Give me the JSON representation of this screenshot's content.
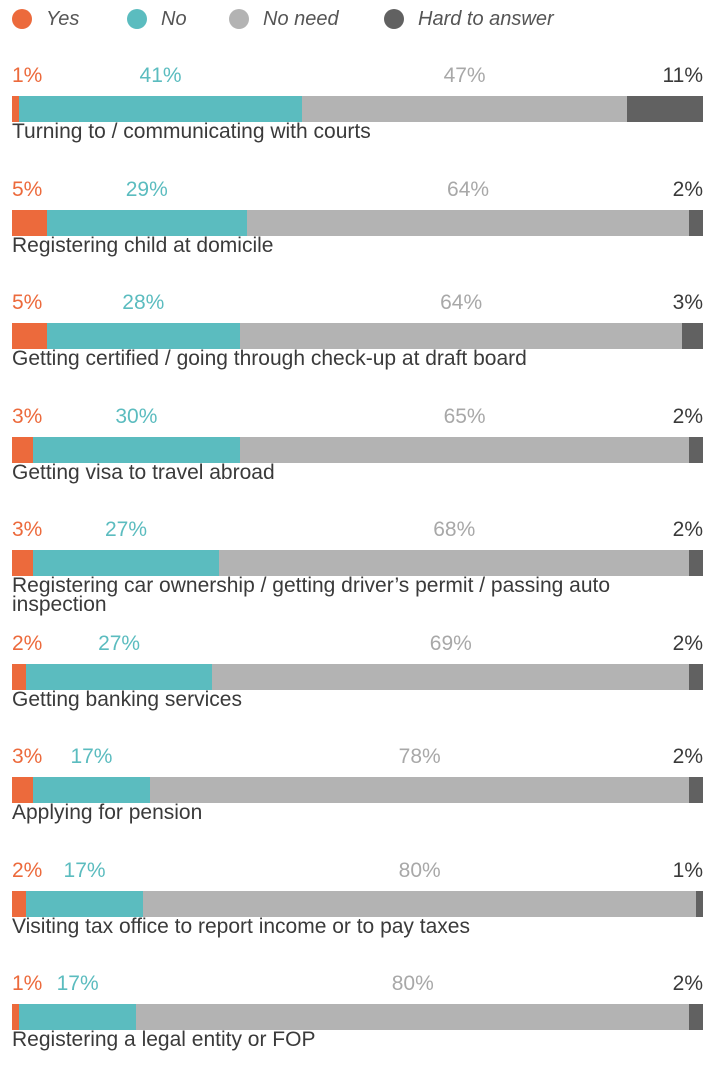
{
  "chart_data": {
    "type": "bar",
    "orientation": "horizontal",
    "stacked": true,
    "legend": "top",
    "series": [
      {
        "key": "yes",
        "name": "Yes",
        "color": "#ec6a3c"
      },
      {
        "key": "no",
        "name": "No",
        "color": "#5bbcbf"
      },
      {
        "key": "no_need",
        "name": "No need",
        "color": "#b3b3b3"
      },
      {
        "key": "hard",
        "name": "Hard to answer",
        "color": "#616161"
      }
    ],
    "rows": [
      {
        "label": "Turning to / communicating with courts",
        "values": [
          1,
          41,
          47,
          11
        ],
        "labels": [
          "1%",
          "41%",
          "47%",
          "11%"
        ]
      },
      {
        "label": "Registering child at domicile",
        "values": [
          5,
          29,
          64,
          2
        ],
        "labels": [
          "5%",
          "29%",
          "64%",
          "2%"
        ]
      },
      {
        "label": "Getting certified / going through check-up at draft board",
        "values": [
          5,
          28,
          64,
          3
        ],
        "labels": [
          "5%",
          "28%",
          "64%",
          "3%"
        ]
      },
      {
        "label": "Getting visa to travel abroad",
        "values": [
          3,
          30,
          65,
          2
        ],
        "labels": [
          "3%",
          "30%",
          "65%",
          "2%"
        ]
      },
      {
        "label": "Registering car ownership / getting driver’s permit / passing auto inspection",
        "values": [
          3,
          27,
          68,
          2
        ],
        "labels": [
          "3%",
          "27%",
          "68%",
          "2%"
        ]
      },
      {
        "label": "Getting banking services",
        "values": [
          2,
          27,
          69,
          2
        ],
        "labels": [
          "2%",
          "27%",
          "69%",
          "2%"
        ]
      },
      {
        "label": "Applying for pension",
        "values": [
          3,
          17,
          78,
          2
        ],
        "labels": [
          "3%",
          "17%",
          "78%",
          "2%"
        ]
      },
      {
        "label": "Visiting tax office to report income or to pay taxes",
        "values": [
          2,
          17,
          80,
          1
        ],
        "labels": [
          "2%",
          "17%",
          "80%",
          "1%"
        ]
      },
      {
        "label": "Registering a legal entity or FOP",
        "values": [
          1,
          17,
          80,
          2
        ],
        "labels": [
          "1%",
          "17%",
          "80%",
          "2%"
        ]
      }
    ]
  }
}
